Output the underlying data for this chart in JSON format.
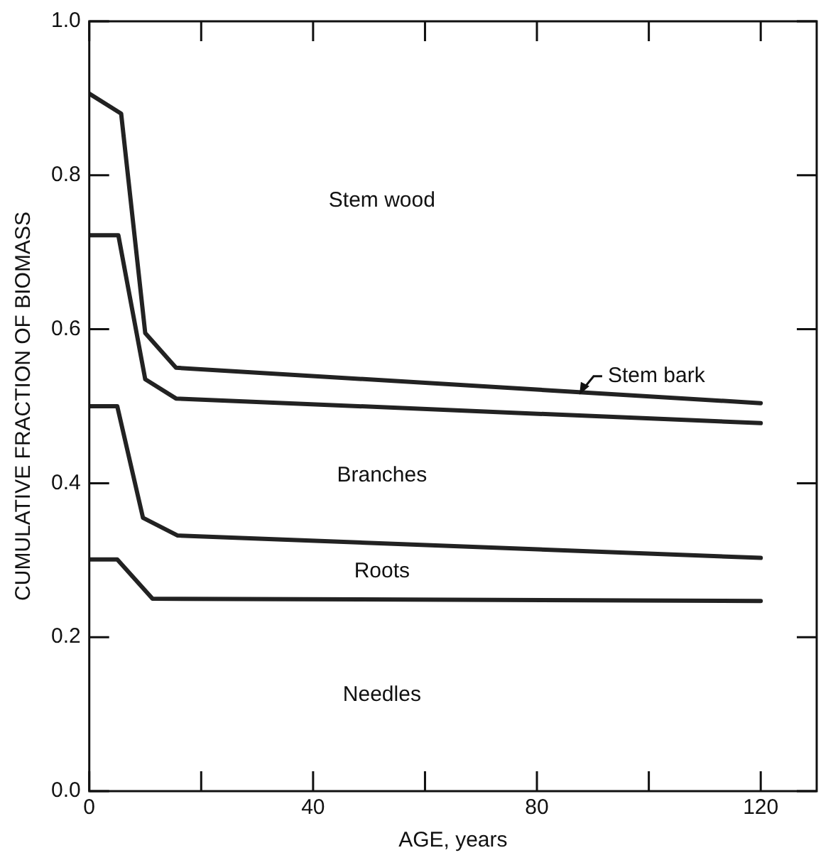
{
  "chart_data": {
    "type": "line",
    "xlabel": "AGE, years",
    "ylabel": "CUMULATIVE FRACTION OF BIOMASS",
    "xlim": [
      0,
      130
    ],
    "ylim": [
      0,
      1
    ],
    "xticks": [
      0,
      {
        "value": 20,
        "label": null
      },
      40,
      {
        "value": 60,
        "label": null
      },
      80,
      {
        "value": 100,
        "label": null
      },
      120
    ],
    "yticks": [
      {
        "value": 0,
        "label": "0.0"
      },
      0.2,
      0.4,
      0.6,
      0.8,
      {
        "value": 1,
        "label": "1.0"
      }
    ],
    "grid": false,
    "legend": false,
    "marker": "none",
    "line_style": "solid",
    "series": [
      {
        "color": "#222222",
        "x": [
          0,
          5.7,
          10,
          15.5,
          120
        ],
        "values": [
          0.906,
          0.88,
          0.595,
          0.55,
          0.504
        ]
      },
      {
        "color": "#222222",
        "x": [
          0,
          5.2,
          10,
          15.5,
          120
        ],
        "values": [
          0.722,
          0.722,
          0.535,
          0.51,
          0.478
        ]
      },
      {
        "color": "#222222",
        "x": [
          0,
          5,
          9.6,
          15.8,
          120
        ],
        "values": [
          0.5,
          0.5,
          0.355,
          0.332,
          0.303
        ]
      },
      {
        "color": "#222222",
        "x": [
          0,
          5,
          11.3,
          120
        ],
        "values": [
          0.301,
          0.301,
          0.25,
          0.247
        ]
      }
    ],
    "annotations": [
      "Stem wood",
      {
        "text": "Stem bark",
        "x": 87.6,
        "y": 0.515
      },
      "Branches",
      "Roots",
      "Needles"
    ]
  }
}
